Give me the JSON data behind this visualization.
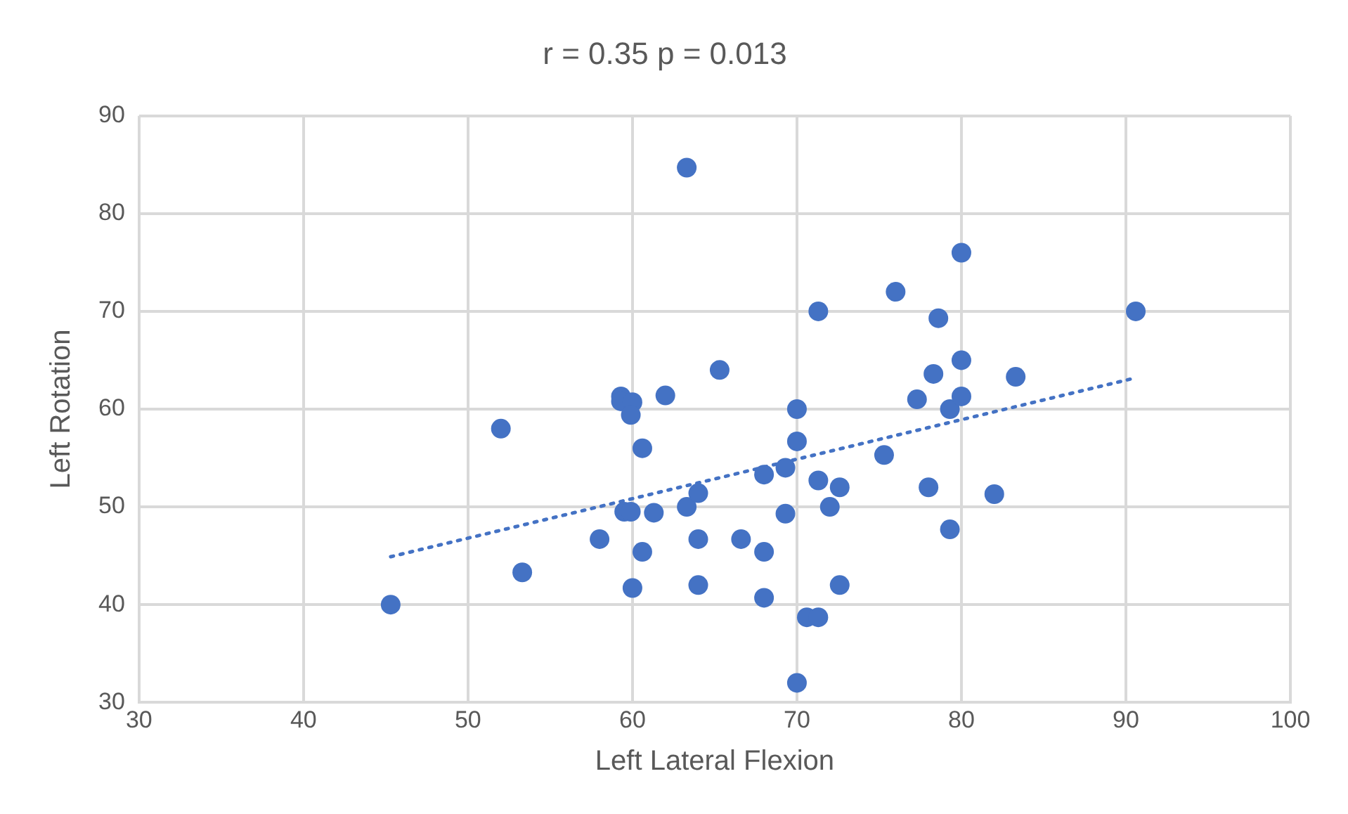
{
  "chart_data": {
    "type": "scatter",
    "title": "r = 0.35 p = 0.013",
    "xlabel": "Left Lateral Flexion",
    "ylabel": "Left Rotation",
    "xlim": [
      30,
      100
    ],
    "xticks": [
      30,
      40,
      50,
      60,
      70,
      80,
      90,
      100
    ],
    "ylim": [
      30,
      90
    ],
    "yticks": [
      30,
      40,
      50,
      60,
      70,
      80,
      90
    ],
    "grid": true,
    "legend": false,
    "series": [
      {
        "type": "scatter",
        "color": "#4472c4",
        "marker": "circle",
        "x": [
          45.3,
          52,
          53.3,
          58,
          59.3,
          59.3,
          60,
          59.9,
          59.5,
          59.9,
          60,
          60.6,
          60.6,
          61.3,
          62,
          63.3,
          63.3,
          64,
          64,
          64,
          65.3,
          66.6,
          68,
          68,
          68,
          69.3,
          69.3,
          70,
          70,
          70,
          70.6,
          71.3,
          71.3,
          71.3,
          72,
          72.6,
          72.6,
          75.3,
          76,
          77.3,
          78,
          78.3,
          78.6,
          79.3,
          79.3,
          80,
          80,
          80,
          82,
          83.3,
          90.6
        ],
        "values": [
          40,
          58,
          43.3,
          46.7,
          61.3,
          60.8,
          60.7,
          59.4,
          49.5,
          49.5,
          41.7,
          56,
          45.4,
          49.4,
          61.4,
          84.7,
          50,
          51.4,
          46.7,
          42,
          64,
          46.7,
          53.3,
          45.4,
          40.7,
          54,
          49.3,
          60,
          56.7,
          32,
          38.7,
          38.7,
          70,
          52.7,
          50,
          52,
          42,
          55.3,
          72,
          61,
          52,
          63.6,
          69.3,
          60,
          47.7,
          76,
          65,
          61.3,
          51.3,
          63.3,
          70
        ]
      },
      {
        "type": "line",
        "color": "#4472c4",
        "marker": "none",
        "line_style": "dotted",
        "x": [
          45.3,
          90.6
        ],
        "values": [
          44.9,
          63.2
        ]
      }
    ]
  }
}
